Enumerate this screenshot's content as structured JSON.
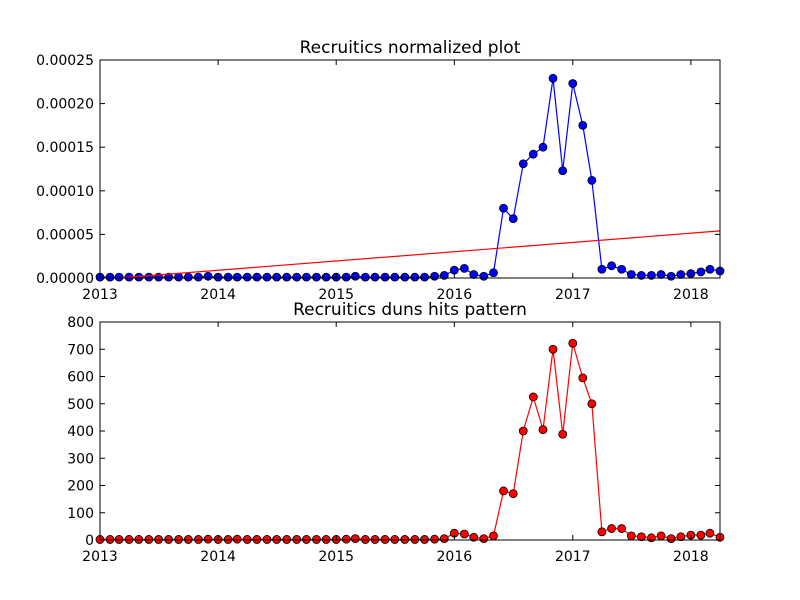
{
  "chart_data": [
    {
      "type": "line",
      "title": "Recruitics normalized plot",
      "xlabel": "",
      "ylabel": "",
      "x_range": [
        "2013-01-01",
        "2018-04-01"
      ],
      "ylim": [
        0,
        0.00025
      ],
      "x_ticks": [
        "2013",
        "2014",
        "2015",
        "2016",
        "2017",
        "2018"
      ],
      "y_ticks": [
        "0.00000",
        "0.00005",
        "0.00010",
        "0.00015",
        "0.00020",
        "0.00025"
      ],
      "grid": false,
      "series": [
        {
          "color": "#0000ff",
          "marker": "circle",
          "line": true,
          "points": [
            [
              "2013-01-01",
              1e-06
            ],
            [
              "2013-02-01",
              1e-06
            ],
            [
              "2013-03-01",
              1e-06
            ],
            [
              "2013-04-01",
              1e-06
            ],
            [
              "2013-05-01",
              1e-06
            ],
            [
              "2013-06-01",
              1e-06
            ],
            [
              "2013-07-01",
              1e-06
            ],
            [
              "2013-08-01",
              1e-06
            ],
            [
              "2013-09-01",
              1e-06
            ],
            [
              "2013-10-01",
              1e-06
            ],
            [
              "2013-11-01",
              1e-06
            ],
            [
              "2013-12-01",
              2e-06
            ],
            [
              "2014-01-01",
              1e-06
            ],
            [
              "2014-02-01",
              1e-06
            ],
            [
              "2014-03-01",
              1e-06
            ],
            [
              "2014-04-01",
              1e-06
            ],
            [
              "2014-05-01",
              1e-06
            ],
            [
              "2014-06-01",
              1e-06
            ],
            [
              "2014-07-01",
              1e-06
            ],
            [
              "2014-08-01",
              1e-06
            ],
            [
              "2014-09-01",
              1e-06
            ],
            [
              "2014-10-01",
              1e-06
            ],
            [
              "2014-11-01",
              1e-06
            ],
            [
              "2014-12-01",
              1e-06
            ],
            [
              "2015-01-01",
              1e-06
            ],
            [
              "2015-02-01",
              1e-06
            ],
            [
              "2015-03-01",
              2e-06
            ],
            [
              "2015-04-01",
              1e-06
            ],
            [
              "2015-05-01",
              1e-06
            ],
            [
              "2015-06-01",
              1e-06
            ],
            [
              "2015-07-01",
              1e-06
            ],
            [
              "2015-08-01",
              1e-06
            ],
            [
              "2015-09-01",
              1e-06
            ],
            [
              "2015-10-01",
              1e-06
            ],
            [
              "2015-11-01",
              2e-06
            ],
            [
              "2015-12-01",
              3e-06
            ],
            [
              "2016-01-01",
              9e-06
            ],
            [
              "2016-02-01",
              1.1e-05
            ],
            [
              "2016-03-01",
              4e-06
            ],
            [
              "2016-04-01",
              2e-06
            ],
            [
              "2016-05-01",
              6e-06
            ],
            [
              "2016-06-01",
              8e-05
            ],
            [
              "2016-07-01",
              6.8e-05
            ],
            [
              "2016-08-01",
              0.000131
            ],
            [
              "2016-09-01",
              0.000142
            ],
            [
              "2016-10-01",
              0.00015
            ],
            [
              "2016-11-01",
              0.000229
            ],
            [
              "2016-12-01",
              0.000123
            ],
            [
              "2017-01-01",
              0.000223
            ],
            [
              "2017-02-01",
              0.000175
            ],
            [
              "2017-03-01",
              0.000112
            ],
            [
              "2017-04-01",
              1e-05
            ],
            [
              "2017-05-01",
              1.4e-05
            ],
            [
              "2017-06-01",
              1e-05
            ],
            [
              "2017-07-01",
              4e-06
            ],
            [
              "2017-08-01",
              3e-06
            ],
            [
              "2017-09-01",
              3e-06
            ],
            [
              "2017-10-01",
              4e-06
            ],
            [
              "2017-11-01",
              2e-06
            ],
            [
              "2017-12-01",
              4e-06
            ],
            [
              "2018-01-01",
              5e-06
            ],
            [
              "2018-02-01",
              7e-06
            ],
            [
              "2018-03-01",
              1e-05
            ],
            [
              "2018-04-01",
              8e-06
            ]
          ]
        },
        {
          "color": "#ff0000",
          "marker": "none",
          "line": true,
          "points": [
            [
              "2013-03-01",
              0.0
            ],
            [
              "2018-04-01",
              5.4e-05
            ]
          ]
        }
      ]
    },
    {
      "type": "line",
      "title": "Recruitics duns hits pattern",
      "xlabel": "",
      "ylabel": "",
      "x_range": [
        "2013-01-01",
        "2018-04-01"
      ],
      "ylim": [
        0,
        800
      ],
      "x_ticks": [
        "2013",
        "2014",
        "2015",
        "2016",
        "2017",
        "2018"
      ],
      "y_ticks": [
        "0",
        "100",
        "200",
        "300",
        "400",
        "500",
        "600",
        "700",
        "800"
      ],
      "grid": false,
      "series": [
        {
          "color": "#ff0000",
          "marker": "circle",
          "line": true,
          "points": [
            [
              "2013-01-01",
              2
            ],
            [
              "2013-02-01",
              2
            ],
            [
              "2013-03-01",
              2
            ],
            [
              "2013-04-01",
              2
            ],
            [
              "2013-05-01",
              2
            ],
            [
              "2013-06-01",
              2
            ],
            [
              "2013-07-01",
              2
            ],
            [
              "2013-08-01",
              2
            ],
            [
              "2013-09-01",
              2
            ],
            [
              "2013-10-01",
              2
            ],
            [
              "2013-11-01",
              2
            ],
            [
              "2013-12-01",
              3
            ],
            [
              "2014-01-01",
              2
            ],
            [
              "2014-02-01",
              2
            ],
            [
              "2014-03-01",
              3
            ],
            [
              "2014-04-01",
              2
            ],
            [
              "2014-05-01",
              2
            ],
            [
              "2014-06-01",
              2
            ],
            [
              "2014-07-01",
              2
            ],
            [
              "2014-08-01",
              2
            ],
            [
              "2014-09-01",
              2
            ],
            [
              "2014-10-01",
              2
            ],
            [
              "2014-11-01",
              2
            ],
            [
              "2014-12-01",
              2
            ],
            [
              "2015-01-01",
              2
            ],
            [
              "2015-02-01",
              3
            ],
            [
              "2015-03-01",
              5
            ],
            [
              "2015-04-01",
              2
            ],
            [
              "2015-05-01",
              2
            ],
            [
              "2015-06-01",
              2
            ],
            [
              "2015-07-01",
              2
            ],
            [
              "2015-08-01",
              2
            ],
            [
              "2015-09-01",
              2
            ],
            [
              "2015-10-01",
              2
            ],
            [
              "2015-11-01",
              3
            ],
            [
              "2015-12-01",
              5
            ],
            [
              "2016-01-01",
              25
            ],
            [
              "2016-02-01",
              22
            ],
            [
              "2016-03-01",
              10
            ],
            [
              "2016-04-01",
              5
            ],
            [
              "2016-05-01",
              15
            ],
            [
              "2016-06-01",
              180
            ],
            [
              "2016-07-01",
              170
            ],
            [
              "2016-08-01",
              400
            ],
            [
              "2016-09-01",
              525
            ],
            [
              "2016-10-01",
              405
            ],
            [
              "2016-11-01",
              700
            ],
            [
              "2016-12-01",
              388
            ],
            [
              "2017-01-01",
              722
            ],
            [
              "2017-02-01",
              595
            ],
            [
              "2017-03-01",
              500
            ],
            [
              "2017-04-01",
              30
            ],
            [
              "2017-05-01",
              42
            ],
            [
              "2017-06-01",
              42
            ],
            [
              "2017-07-01",
              15
            ],
            [
              "2017-08-01",
              12
            ],
            [
              "2017-09-01",
              8
            ],
            [
              "2017-10-01",
              15
            ],
            [
              "2017-11-01",
              5
            ],
            [
              "2017-12-01",
              12
            ],
            [
              "2018-01-01",
              18
            ],
            [
              "2018-02-01",
              18
            ],
            [
              "2018-03-01",
              25
            ],
            [
              "2018-04-01",
              10
            ]
          ]
        }
      ]
    }
  ]
}
